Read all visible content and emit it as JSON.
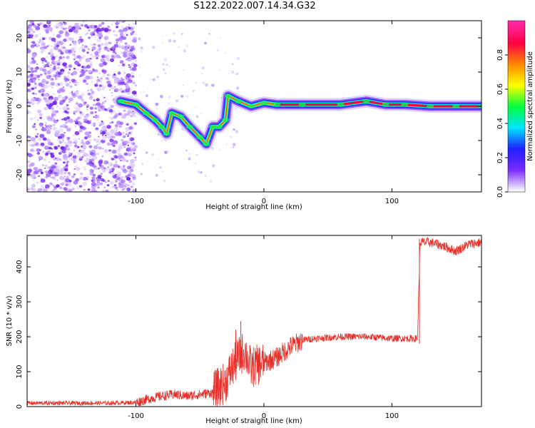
{
  "figure": {
    "title": "S122.2022.007.14.34.G32"
  },
  "chart_data": [
    {
      "type": "heatmap",
      "title": "",
      "xlabel": "Height of straight line (km)",
      "ylabel": "Frequency (Hz)",
      "xlim": [
        -185,
        170
      ],
      "ylim": [
        -25,
        25
      ],
      "xticks": [
        -100,
        0,
        100
      ],
      "yticks": [
        -20,
        -10,
        0,
        10,
        20
      ],
      "colorbar": {
        "label": "Normalized spectral amplitude",
        "range": [
          0,
          1
        ],
        "ticks": [
          0.0,
          0.2,
          0.4,
          0.6,
          0.8
        ],
        "colormap": [
          "#ffffff",
          "#7b2cff",
          "#1f1fff",
          "#00e5ff",
          "#00ff3a",
          "#ffff00",
          "#ff8800",
          "#ff0044",
          "#ff2aa8"
        ]
      },
      "noise_region": {
        "x": [
          -185,
          -100
        ],
        "y": [
          -25,
          25
        ]
      },
      "ridge": [
        {
          "x": -112,
          "y": 1.5
        },
        {
          "x": -100,
          "y": 0.5
        },
        {
          "x": -92,
          "y": -2
        },
        {
          "x": -85,
          "y": -4
        },
        {
          "x": -80,
          "y": -6
        },
        {
          "x": -76,
          "y": -8
        },
        {
          "x": -72,
          "y": -2
        },
        {
          "x": -65,
          "y": -3
        },
        {
          "x": -58,
          "y": -6
        },
        {
          "x": -50,
          "y": -9
        },
        {
          "x": -45,
          "y": -11
        },
        {
          "x": -40,
          "y": -6
        },
        {
          "x": -35,
          "y": -6
        },
        {
          "x": -30,
          "y": -4
        },
        {
          "x": -28,
          "y": 3
        },
        {
          "x": -20,
          "y": 1.5
        },
        {
          "x": -10,
          "y": 0
        },
        {
          "x": 0,
          "y": 1
        },
        {
          "x": 10,
          "y": 0.5
        },
        {
          "x": 30,
          "y": 0.5
        },
        {
          "x": 60,
          "y": 0.5
        },
        {
          "x": 80,
          "y": 1.5
        },
        {
          "x": 95,
          "y": 0.5
        },
        {
          "x": 110,
          "y": 0.5
        },
        {
          "x": 130,
          "y": 0
        },
        {
          "x": 150,
          "y": 0
        },
        {
          "x": 170,
          "y": 0
        }
      ]
    },
    {
      "type": "line",
      "title": "",
      "xlabel": "Height of straight line (km)",
      "ylabel": "SNR (10 * v/v)",
      "xlim": [
        -185,
        170
      ],
      "ylim": [
        0,
        490
      ],
      "xticks": [
        -100,
        0,
        100
      ],
      "yticks": [
        0,
        100,
        200,
        300,
        400
      ],
      "color": "#e8302a",
      "series": [
        {
          "x": [
            -185,
            -150,
            -120,
            -100,
            -90,
            -80,
            -70,
            -60,
            -50,
            -40,
            -30,
            -25,
            -20,
            -15,
            -10,
            -5,
            0,
            10,
            20,
            30,
            40,
            60,
            80,
            100,
            115,
            120,
            122,
            130,
            140,
            150,
            160,
            170
          ],
          "values": [
            10,
            10,
            10,
            12,
            22,
            30,
            35,
            30,
            35,
            40,
            70,
            110,
            140,
            160,
            110,
            120,
            125,
            140,
            170,
            190,
            195,
            200,
            200,
            195,
            195,
            195,
            470,
            470,
            460,
            445,
            465,
            470
          ]
        }
      ],
      "spikes": [
        {
          "x": -18,
          "y": 245
        },
        {
          "x": -22,
          "y": 220
        }
      ]
    }
  ]
}
